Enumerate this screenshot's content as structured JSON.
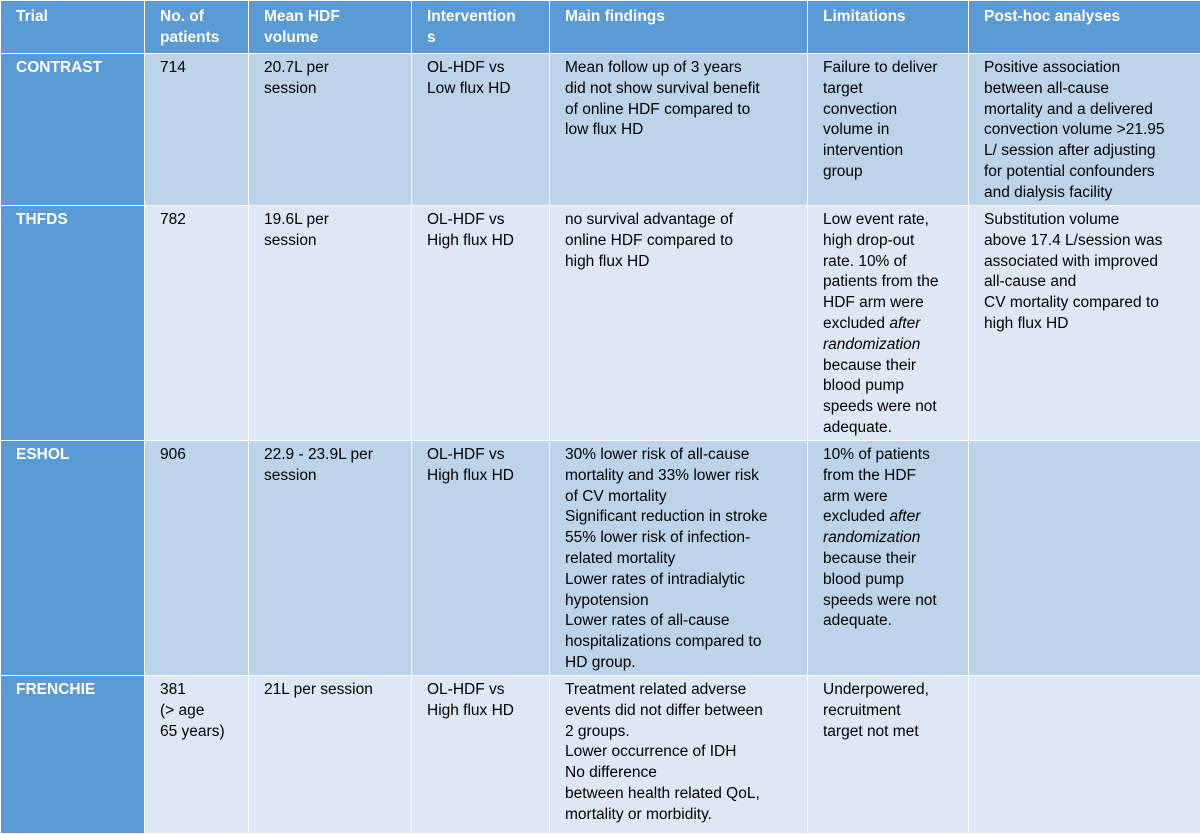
{
  "headers": [
    [
      "Trial"
    ],
    [
      "No. of",
      "patients"
    ],
    [
      "Mean HDF",
      "volume"
    ],
    [
      "Intervention",
      "s"
    ],
    [
      "Main findings"
    ],
    [
      "Limitations"
    ],
    [
      "Post-hoc analyses"
    ]
  ],
  "rows": [
    {
      "trial": "CONTRAST",
      "patients": [
        "714"
      ],
      "volume": [
        "20.7L per",
        "session"
      ],
      "intervention": [
        "OL-HDF vs",
        "Low flux HD"
      ],
      "findings": [
        "Mean follow up of 3  years",
        "did not show survival benefit",
        "of online HDF compared to",
        "low flux HD"
      ],
      "limitations": [
        "Failure to deliver",
        "target",
        "convection",
        "volume in",
        "intervention",
        "group"
      ],
      "posthoc": [
        "Positive association",
        "between all-cause",
        "mortality and a delivered",
        "convection volume >21.95",
        "L/ session after adjusting",
        "for potential confounders",
        "and dialysis facility"
      ]
    },
    {
      "trial": "THFDS",
      "patients": [
        "782"
      ],
      "volume": [
        "19.6L per",
        "session"
      ],
      "intervention": [
        "OL-HDF vs",
        "High flux HD"
      ],
      "findings": [
        "no survival advantage of",
        "online HDF  compared to",
        "high flux HD"
      ],
      "limitations": [
        "Low event rate,",
        "high drop-out",
        "rate.  10% of",
        "patients from the",
        "HDF arm were",
        "excluded ",
        "after",
        "randomization",
        "because their",
        "blood pump",
        "speeds were not",
        "adequate."
      ],
      "posthoc": [
        "Substitution volume",
        "above 17.4 L/session was",
        "associated with improved",
        "all-cause and",
        "CV  mortality compared to",
        "high flux HD"
      ]
    },
    {
      "trial": "ESHOL",
      "patients": [
        "906"
      ],
      "volume": [
        "22.9 - 23.9L per",
        "session"
      ],
      "intervention": [
        "OL-HDF vs",
        "High flux HD"
      ],
      "findings": [
        "30% lower risk of all-cause",
        "mortality and 33% lower risk",
        "of CV mortality",
        "Significant reduction in stroke",
        "55% lower risk of infection-",
        "related mortality",
        "Lower rates of intradialytic",
        "hypotension",
        "Lower rates of all-cause",
        "hospitalizations compared to",
        "HD group."
      ],
      "limitations": [
        "10% of patients",
        "from the HDF",
        "arm were",
        "excluded ",
        "after",
        "randomization",
        "because their",
        "blood pump",
        "speeds were not",
        "adequate."
      ],
      "posthoc": []
    },
    {
      "trial": "FRENCHIE",
      "patients": [
        "381",
        "(> age",
        "65 years)"
      ],
      "volume": [
        "21L per session"
      ],
      "intervention": [
        "OL-HDF vs",
        "High flux HD"
      ],
      "findings": [
        "Treatment related adverse",
        "events did not differ between",
        "2 groups.",
        "Lower occurrence of IDH",
        "No difference",
        "between  health related QoL,",
        "mortality or morbidity."
      ],
      "limitations": [
        "Underpowered,",
        "recruitment",
        "target not met"
      ],
      "posthoc": []
    }
  ]
}
